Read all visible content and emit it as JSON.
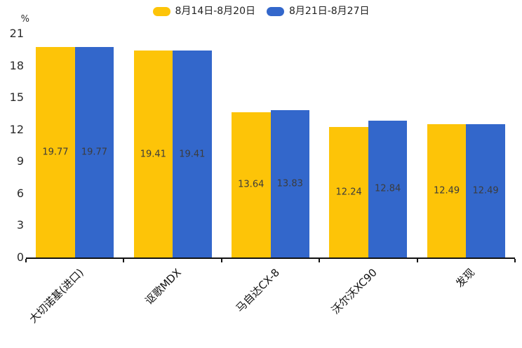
{
  "chart_data": {
    "type": "bar",
    "title": "",
    "legend_position": "top",
    "grid": false,
    "categories": [
      "大切诺基(进口)",
      "讴歌MDX",
      "马自达CX-8",
      "沃尔沃XC90",
      "发现"
    ],
    "series": [
      {
        "name": "8月14日-8月20日",
        "color": "#FDC408",
        "values": [
          19.77,
          19.41,
          13.64,
          12.24,
          12.49
        ]
      },
      {
        "name": "8月21日-8月27日",
        "color": "#3367CB",
        "values": [
          19.77,
          19.41,
          13.83,
          12.84,
          12.49
        ]
      }
    ],
    "y_axis": {
      "unit": "%",
      "min": 0,
      "max": 21,
      "tick_step": 3,
      "ticks": [
        0,
        3,
        6,
        9,
        12,
        15,
        18,
        21
      ]
    },
    "value_labels": "inside-center"
  },
  "style": {
    "axis_color": "#111111",
    "tick_label_color": "#2b2b2b",
    "value_label_color": "#3c3c3c",
    "background": "#ffffff"
  }
}
